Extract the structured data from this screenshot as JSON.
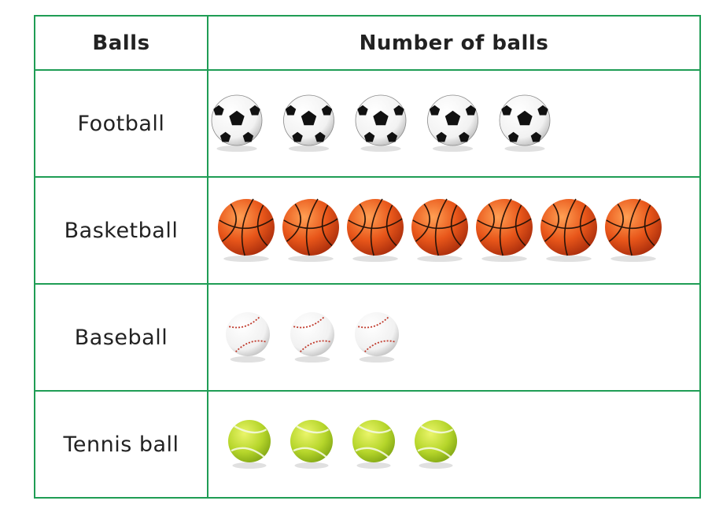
{
  "chart_data": {
    "type": "pictograph",
    "columns": [
      "Balls",
      "Number of balls"
    ],
    "categories": [
      "Football",
      "Basketball",
      "Baseball",
      "Tennis ball"
    ],
    "values": [
      5,
      7,
      3,
      4
    ],
    "icons": [
      "soccer-ball-icon",
      "basketball-icon",
      "baseball-icon",
      "tennis-ball-icon"
    ]
  },
  "colors": {
    "grid": "#1f9d55",
    "basketball": "#e8561a",
    "tennis": "#b5d52a",
    "baseball_stitch": "#c0392b"
  }
}
